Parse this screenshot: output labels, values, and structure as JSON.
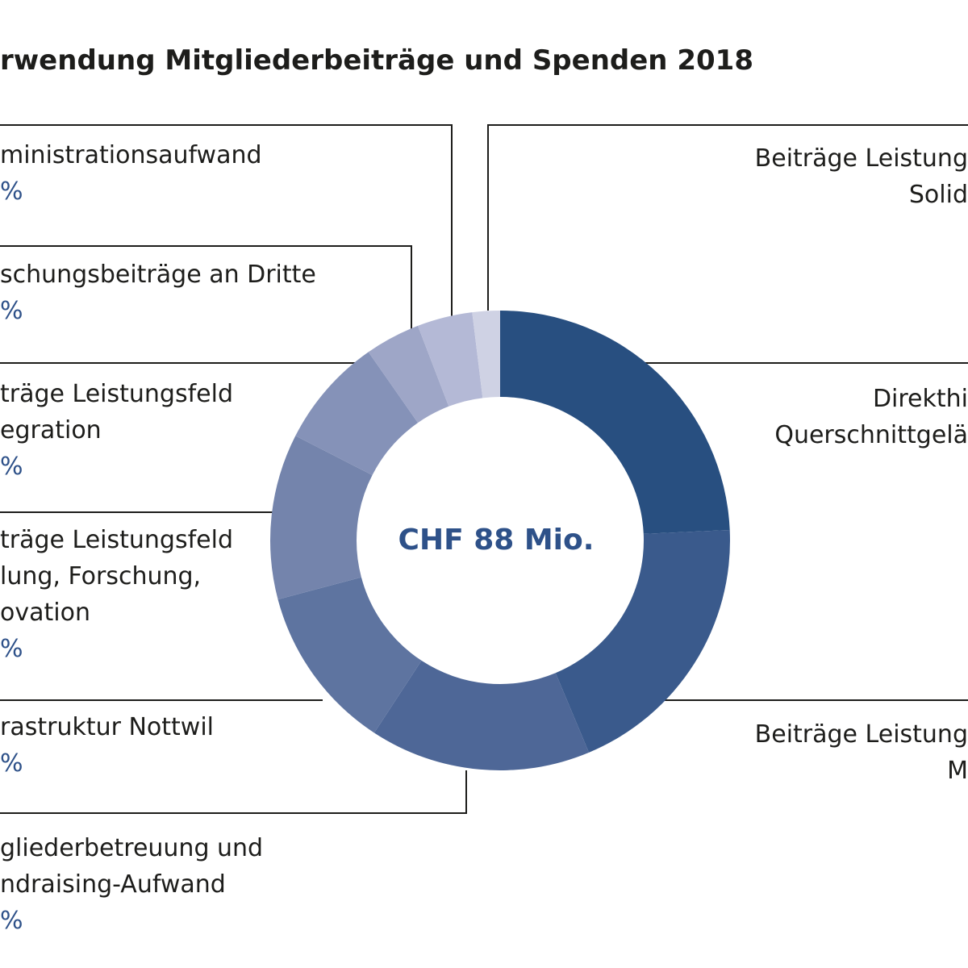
{
  "title": "rwendung Mitgliederbeiträge und Spenden 2018",
  "center_label": "CHF 88 Mio.",
  "left_labels": [
    {
      "lines": [
        "ministrationsaufwand"
      ],
      "pct": "%"
    },
    {
      "lines": [
        "schungsbeiträge an Dritte"
      ],
      "pct": "%"
    },
    {
      "lines": [
        "träge Leistungsfeld",
        "egration"
      ],
      "pct": "%"
    },
    {
      "lines": [
        "träge Leistungsfeld",
        "lung, Forschung,",
        "ovation"
      ],
      "pct": "%"
    },
    {
      "lines": [
        "rastruktur Nottwil"
      ],
      "pct": "%"
    },
    {
      "lines": [
        "gliederbetreuung und",
        "ndraising-Aufwand"
      ],
      "pct": "%"
    }
  ],
  "right_labels": [
    {
      "lines": [
        "Beiträge Leistung",
        "Solid"
      ]
    },
    {
      "lines": [
        "Direkthi",
        "Querschnittgelä"
      ]
    },
    {
      "lines": [
        "Beiträge Leistung",
        "M"
      ]
    }
  ],
  "chart_data": {
    "type": "pie",
    "donut": true,
    "title": "rwendung Mitgliederbeiträge und Spenden 2018",
    "center_text": "CHF 88 Mio.",
    "slices": [
      {
        "value": 25.0,
        "color": "#284f80"
      },
      {
        "value": 20.0,
        "color": "#3a5a8c"
      },
      {
        "value": 16.0,
        "color": "#4e6797"
      },
      {
        "value": 12.0,
        "color": "#5e74a0"
      },
      {
        "value": 12.0,
        "color": "#7484ac"
      },
      {
        "value": 8.0,
        "color": "#8592b8"
      },
      {
        "value": 4.0,
        "color": "#9ea6c7"
      },
      {
        "value": 4.0,
        "color": "#b4b9d6"
      },
      {
        "value": 2.0,
        "color": "#cfd2e4"
      }
    ]
  }
}
